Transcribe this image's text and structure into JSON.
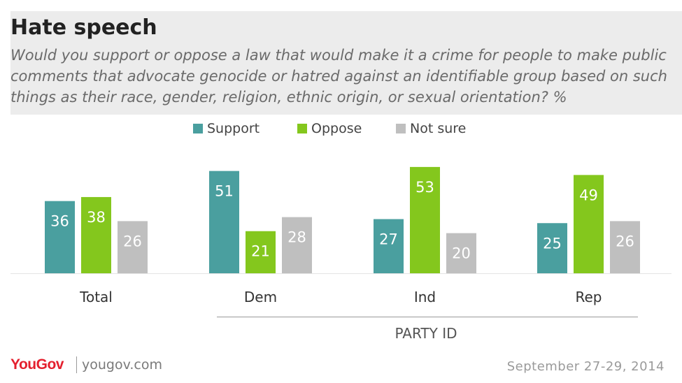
{
  "title": "Hate speech",
  "subtitle": "Would you support or oppose a law that would make it a crime for people to make public comments that advocate genocide or hatred against an identifiable group based on such things as their race, gender, religion, ethnic origin, or sexual orientation? %",
  "colors": {
    "support": "#4a9f9f",
    "oppose": "#84c71d",
    "not_sure": "#bfbfbf"
  },
  "chart_data": {
    "type": "bar",
    "categories": [
      "Total",
      "Dem",
      "Ind",
      "Rep"
    ],
    "series": [
      {
        "name": "Support",
        "values": [
          36,
          51,
          27,
          25
        ]
      },
      {
        "name": "Oppose",
        "values": [
          38,
          21,
          53,
          49
        ]
      },
      {
        "name": "Not sure",
        "values": [
          26,
          28,
          20,
          26
        ]
      }
    ],
    "group_label": "PARTY ID",
    "legend_position": "top-center",
    "grid": false
  },
  "footer": {
    "logo": "YouGov",
    "site": "yougov.com",
    "date": "September 27-29, 2014"
  }
}
